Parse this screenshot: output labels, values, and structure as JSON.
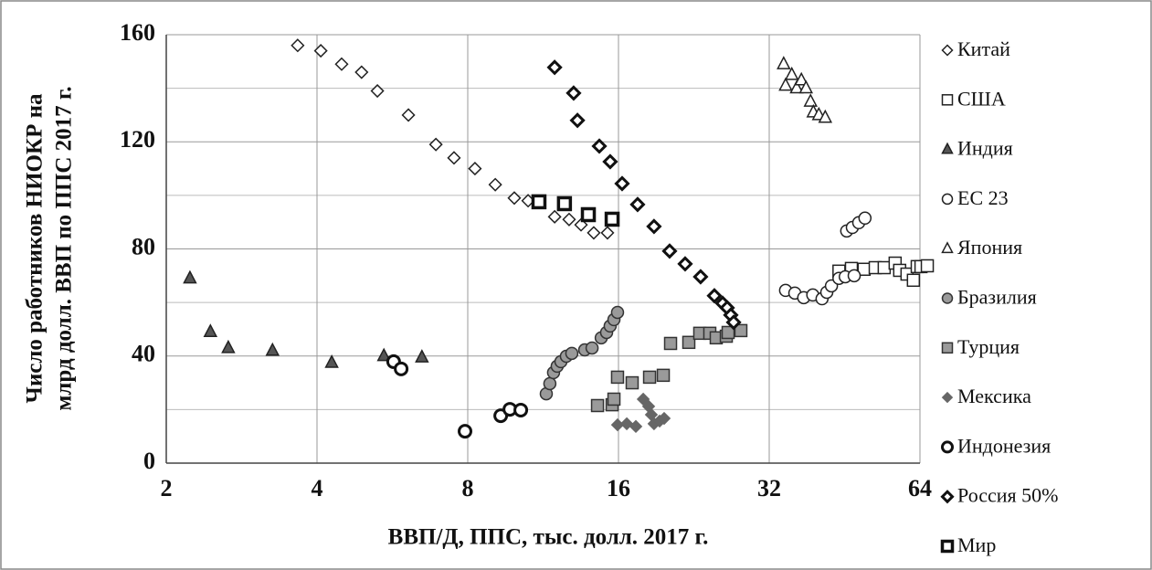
{
  "chart_data": {
    "type": "scatter",
    "xlabel": "ВВП/Д, ППС, тыс. долл. 2017 г.",
    "ylabel": [
      "Число работников НИОКР на",
      "млрд долл. ВВП по ППС 2017 г."
    ],
    "xscale": "log2",
    "xlim": [
      2,
      64
    ],
    "xticks": [
      2,
      4,
      8,
      16,
      32,
      64
    ],
    "ylim": [
      0,
      160
    ],
    "yticks": [
      0,
      40,
      80,
      120,
      160
    ],
    "yminor": [
      20,
      60,
      100,
      140
    ],
    "grid": true,
    "legend": "right",
    "series": [
      {
        "name": "Китай",
        "marker": "diamond",
        "color": "#222",
        "fill": "#fff",
        "width": 1.5,
        "x": [
          3.66,
          4.07,
          4.48,
          4.91,
          5.28,
          6.09,
          6.91,
          7.51,
          8.27,
          9.08,
          9.91,
          10.56,
          11.93,
          12.75,
          13.47,
          14.28,
          15.21
        ],
        "values": [
          156,
          154,
          149,
          146,
          139,
          130,
          119,
          114,
          110,
          104,
          99,
          98,
          92,
          91,
          89,
          86,
          86
        ]
      },
      {
        "name": "США",
        "marker": "square",
        "color": "#222",
        "fill": "#fff",
        "width": 1.5,
        "x": [
          44.1,
          46.7,
          49.5,
          52.1,
          54.3,
          57.1,
          58.3,
          60.3,
          62.1,
          63.2,
          64.3,
          66.2
        ],
        "values": [
          71.7,
          72.7,
          72.4,
          73,
          73,
          74.7,
          72,
          70.6,
          68.3,
          73.4,
          73.4,
          73.7
        ]
      },
      {
        "name": "Индия",
        "marker": "triangle",
        "color": "#222",
        "fill": "#555",
        "width": 1.5,
        "x": [
          2.23,
          2.45,
          2.66,
          3.26,
          4.28,
          5.44,
          6.48
        ],
        "values": [
          69,
          49,
          43,
          42,
          37.5,
          40,
          39.5
        ]
      },
      {
        "name": "ЕС 23",
        "marker": "circle",
        "color": "#222",
        "fill": "#fff",
        "width": 1.5,
        "x": [
          34.5,
          36,
          37.5,
          39.1,
          40.8,
          41.7,
          42.6,
          44.1,
          45.4,
          47.3,
          45.7,
          46.9,
          48.3,
          49.7
        ],
        "values": [
          64.5,
          63.5,
          61.8,
          62.8,
          61.4,
          63.8,
          66.2,
          69,
          69.6,
          70,
          86.7,
          88,
          89.8,
          91.5
        ]
      },
      {
        "name": "Япония",
        "marker": "triangle",
        "color": "#222",
        "fill": "#fff",
        "width": 1.5,
        "x": [
          34.2,
          34.5,
          35.5,
          36.3,
          37.1,
          37.9,
          38.7,
          39.2,
          40.2,
          41.4
        ],
        "values": [
          149,
          141,
          145,
          140,
          143,
          140,
          135,
          131,
          130,
          129
        ]
      },
      {
        "name": "Бразилия",
        "marker": "circle",
        "color": "#333",
        "fill": "#9a9a9a",
        "width": 1.5,
        "x": [
          11.48,
          11.67,
          11.87,
          12.07,
          12.28,
          12.59,
          12.91,
          13.7,
          14.17,
          14.78,
          15.15,
          15.4,
          15.67,
          15.93
        ],
        "values": [
          25.9,
          29.7,
          33.8,
          36.2,
          37.9,
          39.9,
          41,
          42.3,
          43,
          46.8,
          48.8,
          51.2,
          53.6,
          56.3
        ]
      },
      {
        "name": "Турция",
        "marker": "square",
        "color": "#333",
        "fill": "#9a9a9a",
        "width": 1.5,
        "x": [
          14.53,
          15.54,
          15.67,
          15.93,
          17.04,
          18.46,
          19.66,
          20.33,
          22.11,
          23.25,
          24.35,
          25.08,
          26.27,
          26.49,
          28.09
        ],
        "values": [
          21.5,
          21.8,
          23.9,
          32.1,
          30,
          32.1,
          32.8,
          44.7,
          45.1,
          48.5,
          48.5,
          46.8,
          47.4,
          48.8,
          49.5
        ]
      },
      {
        "name": "Мексика",
        "marker": "diamond",
        "color": "#666",
        "fill": "#666",
        "width": 1,
        "x": [
          15.93,
          16.62,
          17.33,
          17.93,
          18.38,
          18.61,
          18.84,
          19.33,
          19.74
        ],
        "values": [
          14.3,
          14.7,
          13.7,
          23.9,
          21.2,
          18.1,
          14.7,
          15.7,
          16.7
        ]
      },
      {
        "name": "Индонезия",
        "marker": "circle",
        "color": "#111",
        "fill": "#fff",
        "width": 3,
        "x": [
          5.69,
          5.89,
          7.9,
          9.31,
          9.71,
          10.21
        ],
        "values": [
          37.9,
          35.2,
          11.9,
          17.7,
          20.1,
          19.8
        ]
      },
      {
        "name": "Россия 50%",
        "marker": "diamond",
        "color": "#111",
        "fill": "#fff",
        "width": 3,
        "x": [
          11.93,
          13.02,
          13.25,
          14.65,
          15.4,
          16.27,
          17.47,
          18.84,
          20.24,
          21.74,
          23.34,
          24.87,
          25.83,
          26.38,
          26.82,
          27.17
        ],
        "values": [
          147.8,
          138.2,
          128,
          118.4,
          112.6,
          104.4,
          96.6,
          88.4,
          79.2,
          74.4,
          69.6,
          62.5,
          59.7,
          58,
          55.3,
          52.6
        ]
      },
      {
        "name": "Мир",
        "marker": "square",
        "color": "#111",
        "fill": "#fff",
        "width": 3.5,
        "x": [
          11.1,
          12.48,
          13.93,
          15.54
        ],
        "values": [
          97.6,
          96.9,
          92.8,
          91.1
        ]
      }
    ]
  }
}
